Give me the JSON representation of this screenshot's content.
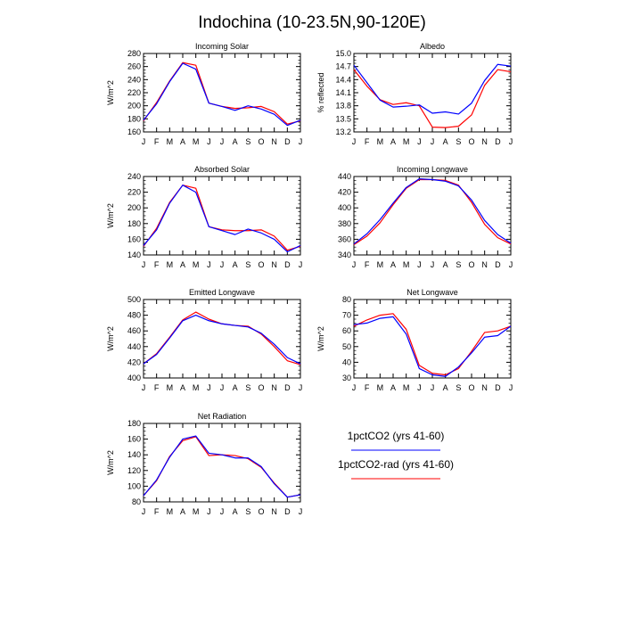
{
  "figure_title": "Indochina (10-23.5N,90-120E)",
  "legend": {
    "entries": [
      {
        "label": "1pctCO2 (yrs 41-60)",
        "color": "#0000ff"
      },
      {
        "label": "1pctCO2-rad (yrs 41-60)",
        "color": "#ff0000"
      }
    ]
  },
  "chart_data": [
    {
      "type": "line",
      "title": "Incoming Solar",
      "ylabel": "W/m^2",
      "categories": [
        "J",
        "F",
        "M",
        "A",
        "M",
        "J",
        "J",
        "A",
        "S",
        "O",
        "N",
        "D",
        "J"
      ],
      "ylim": [
        160,
        280
      ],
      "yticks": [
        160,
        180,
        200,
        220,
        240,
        260,
        280
      ],
      "series": [
        {
          "name": "1pctCO2 (yrs 41-60)",
          "color": "#0000ff",
          "values": [
            178,
            203,
            237,
            265,
            256,
            204,
            199,
            193,
            200,
            195,
            187,
            170,
            178
          ]
        },
        {
          "name": "1pctCO2-rad (yrs 41-60)",
          "color": "#ff0000",
          "values": [
            177,
            205,
            238,
            266,
            262,
            204,
            199,
            196,
            197,
            199,
            191,
            172,
            177
          ]
        }
      ]
    },
    {
      "type": "line",
      "title": "Albedo",
      "ylabel": "% reflected",
      "categories": [
        "J",
        "F",
        "M",
        "A",
        "M",
        "J",
        "J",
        "A",
        "S",
        "O",
        "N",
        "D",
        "J"
      ],
      "ylim": [
        13.2,
        15.0
      ],
      "yticks": [
        13.2,
        13.5,
        13.8,
        14.1,
        14.4,
        14.7,
        15.0
      ],
      "series": [
        {
          "name": "1pctCO2 (yrs 41-60)",
          "color": "#0000ff",
          "values": [
            14.73,
            14.33,
            13.93,
            13.77,
            13.79,
            13.82,
            13.63,
            13.66,
            13.61,
            13.86,
            14.38,
            14.75,
            14.71
          ]
        },
        {
          "name": "1pctCO2-rad (yrs 41-60)",
          "color": "#ff0000",
          "values": [
            14.63,
            14.25,
            13.94,
            13.83,
            13.87,
            13.8,
            13.31,
            13.3,
            13.33,
            13.59,
            14.27,
            14.63,
            14.58
          ]
        }
      ]
    },
    {
      "type": "line",
      "title": "Absorbed Solar",
      "ylabel": "W/m^2",
      "categories": [
        "J",
        "F",
        "M",
        "A",
        "M",
        "J",
        "J",
        "A",
        "S",
        "O",
        "N",
        "D",
        "J"
      ],
      "ylim": [
        140,
        240
      ],
      "yticks": [
        140,
        160,
        180,
        200,
        220,
        240
      ],
      "series": [
        {
          "name": "1pctCO2 (yrs 41-60)",
          "color": "#0000ff",
          "values": [
            152,
            172,
            206,
            229,
            220,
            176,
            171,
            166,
            173,
            168,
            160,
            144,
            152
          ]
        },
        {
          "name": "1pctCO2-rad (yrs 41-60)",
          "color": "#ff0000",
          "values": [
            151,
            174,
            207,
            229,
            225,
            176,
            172,
            171,
            171,
            172,
            164,
            146,
            151
          ]
        }
      ]
    },
    {
      "type": "line",
      "title": "Incoming Longwave",
      "ylabel": "",
      "categories": [
        "J",
        "F",
        "M",
        "A",
        "M",
        "J",
        "J",
        "A",
        "S",
        "O",
        "N",
        "D",
        "J"
      ],
      "ylim": [
        340,
        440
      ],
      "yticks": [
        340,
        360,
        380,
        400,
        420,
        440
      ],
      "series": [
        {
          "name": "1pctCO2 (yrs 41-60)",
          "color": "#0000ff",
          "values": [
            354,
            367,
            385,
            406,
            426,
            437,
            436,
            434,
            428,
            410,
            384,
            366,
            355
          ]
        },
        {
          "name": "1pctCO2-rad (yrs 41-60)",
          "color": "#ff0000",
          "values": [
            353,
            364,
            381,
            404,
            425,
            436,
            436,
            435,
            429,
            407,
            379,
            362,
            354
          ]
        }
      ]
    },
    {
      "type": "line",
      "title": "Emitted Longwave",
      "ylabel": "W/m^2",
      "categories": [
        "J",
        "F",
        "M",
        "A",
        "M",
        "J",
        "J",
        "A",
        "S",
        "O",
        "N",
        "D",
        "J"
      ],
      "ylim": [
        400,
        500
      ],
      "yticks": [
        400,
        420,
        440,
        460,
        480,
        500
      ],
      "series": [
        {
          "name": "1pctCO2 (yrs 41-60)",
          "color": "#0000ff",
          "values": [
            418,
            430,
            451,
            473,
            480,
            473,
            469,
            467,
            465,
            457,
            443,
            426,
            418
          ]
        },
        {
          "name": "1pctCO2-rad (yrs 41-60)",
          "color": "#ff0000",
          "values": [
            418,
            431,
            452,
            474,
            484,
            475,
            469,
            467,
            466,
            456,
            440,
            422,
            417
          ]
        }
      ]
    },
    {
      "type": "line",
      "title": "Net Longwave",
      "ylabel": "W/m^2",
      "categories": [
        "J",
        "F",
        "M",
        "A",
        "M",
        "J",
        "J",
        "A",
        "S",
        "O",
        "N",
        "D",
        "J"
      ],
      "ylim": [
        30,
        80
      ],
      "yticks": [
        30,
        40,
        50,
        60,
        70,
        80
      ],
      "series": [
        {
          "name": "1pctCO2 (yrs 41-60)",
          "color": "#0000ff",
          "values": [
            64,
            65,
            68,
            69,
            58,
            36,
            32,
            31,
            37,
            46,
            56,
            57,
            63
          ]
        },
        {
          "name": "1pctCO2-rad (yrs 41-60)",
          "color": "#ff0000",
          "values": [
            63,
            67,
            70,
            71,
            61,
            38,
            33,
            32,
            36,
            47,
            59,
            60,
            63
          ]
        }
      ]
    },
    {
      "type": "line",
      "title": "Net Radiation",
      "ylabel": "W/m^2",
      "categories": [
        "J",
        "F",
        "M",
        "A",
        "M",
        "J",
        "J",
        "A",
        "S",
        "O",
        "N",
        "D",
        "J"
      ],
      "ylim": [
        80,
        180
      ],
      "yticks": [
        80,
        100,
        120,
        140,
        160,
        180
      ],
      "series": [
        {
          "name": "1pctCO2 (yrs 41-60)",
          "color": "#0000ff",
          "values": [
            88,
            108,
            137,
            160,
            164,
            142,
            140,
            136,
            136,
            125,
            103,
            86,
            89
          ]
        },
        {
          "name": "1pctCO2-rad (yrs 41-60)",
          "color": "#ff0000",
          "values": [
            88,
            107,
            138,
            158,
            163,
            139,
            140,
            139,
            135,
            124,
            104,
            86,
            89
          ]
        }
      ]
    }
  ]
}
